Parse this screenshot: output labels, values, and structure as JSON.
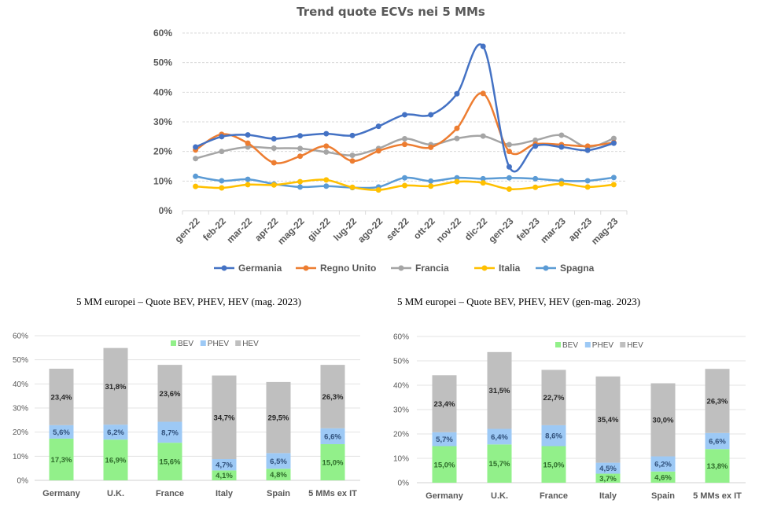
{
  "chart_data": [
    {
      "type": "line",
      "title": "Trend quote ECVs nei 5 MMs",
      "categories": [
        "gen-22",
        "feb-22",
        "mar-22",
        "apr-22",
        "mag-22",
        "giu-22",
        "lug-22",
        "ago-22",
        "set-22",
        "ott-22",
        "nov-22",
        "dic-22",
        "gen-23",
        "feb-23",
        "mar-23",
        "apr-23",
        "mag-23"
      ],
      "ylim": [
        0,
        60
      ],
      "yticks": [
        "0%",
        "10%",
        "20%",
        "30%",
        "40%",
        "50%",
        "60%"
      ],
      "grid": true,
      "legend": "bottom",
      "series": [
        {
          "name": "Germania",
          "color": "#4472C4",
          "values": [
            21.5,
            25.0,
            25.6,
            24.3,
            25.3,
            26.0,
            25.4,
            28.5,
            32.4,
            32.4,
            39.5,
            55.5,
            14.8,
            21.8,
            21.5,
            20.4,
            22.8
          ]
        },
        {
          "name": "Regno Unito",
          "color": "#ED7D31",
          "values": [
            20.5,
            25.8,
            22.8,
            16.2,
            18.4,
            21.8,
            16.8,
            20.2,
            22.4,
            21.4,
            27.8,
            39.6,
            20.0,
            22.5,
            22.3,
            21.8,
            23.0
          ]
        },
        {
          "name": "Francia",
          "color": "#A5A5A5",
          "values": [
            17.6,
            20.0,
            21.5,
            21.1,
            21.0,
            19.8,
            18.7,
            21.0,
            24.3,
            22.3,
            24.4,
            25.2,
            22.3,
            23.8,
            25.5,
            21.5,
            24.4
          ]
        },
        {
          "name": "Italia",
          "color": "#FFC000",
          "values": [
            8.2,
            7.7,
            8.8,
            8.7,
            9.8,
            10.4,
            7.9,
            7.0,
            8.5,
            8.3,
            9.8,
            9.4,
            7.3,
            7.9,
            9.1,
            8.0,
            8.8
          ]
        },
        {
          "name": "Spagna",
          "color": "#5B9BD5",
          "values": [
            11.6,
            10.1,
            10.6,
            9.0,
            8.0,
            8.3,
            7.8,
            8.0,
            11.1,
            10.0,
            11.1,
            10.8,
            11.1,
            10.8,
            10.1,
            10.1,
            11.2
          ]
        }
      ]
    },
    {
      "type": "bar",
      "stacked": true,
      "title": "5 MM europei – Quote BEV, PHEV, HEV (mag. 2023)",
      "categories": [
        "Germany",
        "U.K.",
        "France",
        "Italy",
        "Spain",
        "5 MMs ex IT"
      ],
      "ylim": [
        0,
        60
      ],
      "yticks": [
        "0%",
        "10%",
        "20%",
        "30%",
        "40%",
        "50%",
        "60%"
      ],
      "grid": true,
      "legend": "top",
      "series": [
        {
          "name": "BEV",
          "color": "#92F08A",
          "values": [
            17.3,
            16.9,
            15.6,
            4.1,
            4.8,
            15.0
          ],
          "labels": [
            "17,3%",
            "16,9%",
            "15,6%",
            "4,1%",
            "4,8%",
            "15,0%"
          ]
        },
        {
          "name": "PHEV",
          "color": "#9DC9F5",
          "values": [
            5.6,
            6.2,
            8.7,
            4.7,
            6.5,
            6.6
          ],
          "labels": [
            "5,6%",
            "6,2%",
            "8,7%",
            "4,7%",
            "6,5%",
            "6,6%"
          ]
        },
        {
          "name": "HEV",
          "color": "#BFBFBF",
          "values": [
            23.4,
            31.8,
            23.6,
            34.7,
            29.5,
            26.3
          ],
          "labels": [
            "23,4%",
            "31,8%",
            "23,6%",
            "34,7%",
            "29,5%",
            "26,3%"
          ]
        }
      ]
    },
    {
      "type": "bar",
      "stacked": true,
      "title": "5 MM europei – Quote BEV, PHEV, HEV (gen-mag. 2023)",
      "categories": [
        "Germany",
        "U.K.",
        "France",
        "Italy",
        "Spain",
        "5 MMs ex IT"
      ],
      "ylim": [
        0,
        60
      ],
      "yticks": [
        "0%",
        "10%",
        "20%",
        "30%",
        "40%",
        "50%",
        "60%"
      ],
      "grid": true,
      "legend": "top",
      "series": [
        {
          "name": "BEV",
          "color": "#92F08A",
          "values": [
            15.0,
            15.7,
            15.0,
            3.7,
            4.6,
            13.8
          ],
          "labels": [
            "15,0%",
            "15,7%",
            "15,0%",
            "3,7%",
            "4,6%",
            "13,8%"
          ]
        },
        {
          "name": "PHEV",
          "color": "#9DC9F5",
          "values": [
            5.7,
            6.4,
            8.6,
            4.5,
            6.2,
            6.6
          ],
          "labels": [
            "5,7%",
            "6,4%",
            "8,6%",
            "4,5%",
            "6,2%",
            "6,6%"
          ]
        },
        {
          "name": "HEV",
          "color": "#BFBFBF",
          "values": [
            23.4,
            31.5,
            22.7,
            35.4,
            30.0,
            26.3
          ],
          "labels": [
            "23,4%",
            "31,5%",
            "22,7%",
            "35,4%",
            "30,0%",
            "26,3%"
          ]
        }
      ]
    }
  ]
}
